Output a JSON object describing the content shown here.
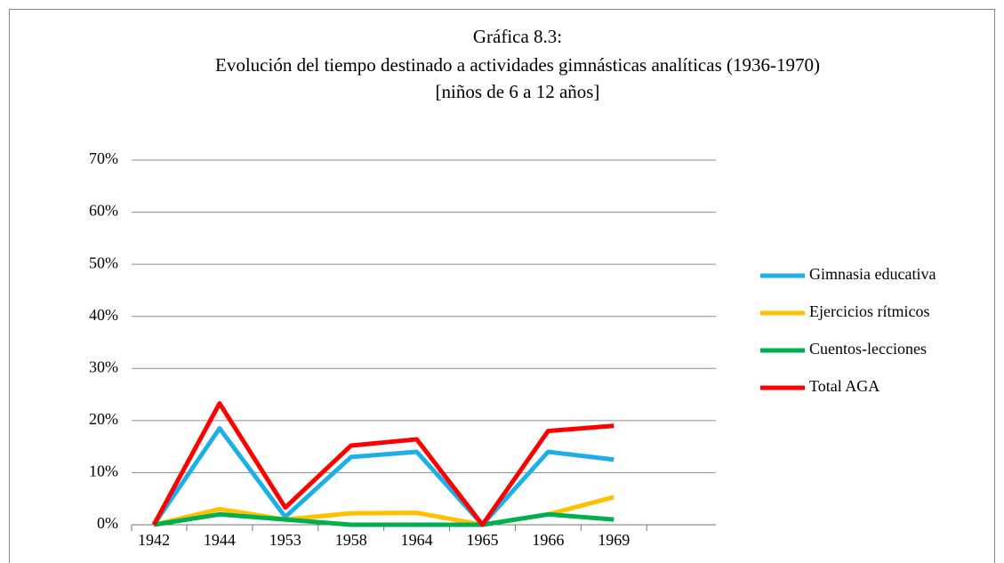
{
  "chart_data": {
    "type": "line",
    "title": [
      "Gráfica 8.3:",
      "Evolución del tiempo destinado a actividades gimnásticas analíticas  (1936-1970)",
      "[niños de 6 a 12 años]"
    ],
    "categories": [
      "1942",
      "1944",
      "1953",
      "1958",
      "1964",
      "1965",
      "1966",
      "1969"
    ],
    "series": [
      {
        "name": "Gimnasia educativa",
        "color": "#1eaee8",
        "values": [
          0,
          18.5,
          1.5,
          13,
          14,
          0,
          14,
          12.5
        ]
      },
      {
        "name": "Ejercicios rítmicos",
        "color": "#ffc000",
        "values": [
          0,
          3,
          1,
          2.2,
          2.3,
          0,
          2,
          5.3
        ]
      },
      {
        "name": "Cuentos-lecciones",
        "color": "#00b050",
        "values": [
          0,
          2,
          1,
          0,
          0,
          0,
          2,
          1
        ]
      },
      {
        "name": "Total AGA",
        "color": "#ff0000",
        "values": [
          0,
          23.3,
          3.3,
          15.2,
          16.4,
          0,
          18,
          19
        ]
      }
    ],
    "ylim": [
      0,
      70
    ],
    "yticks": [
      {
        "value": 0,
        "label": "0%"
      },
      {
        "value": 10,
        "label": "10%"
      },
      {
        "value": 20,
        "label": "20%"
      },
      {
        "value": 30,
        "label": "30%"
      },
      {
        "value": 40,
        "label": "40%"
      },
      {
        "value": 50,
        "label": "50%"
      },
      {
        "value": 60,
        "label": "60%"
      },
      {
        "value": 70,
        "label": "70%"
      }
    ],
    "grid": true,
    "legend": "right"
  }
}
